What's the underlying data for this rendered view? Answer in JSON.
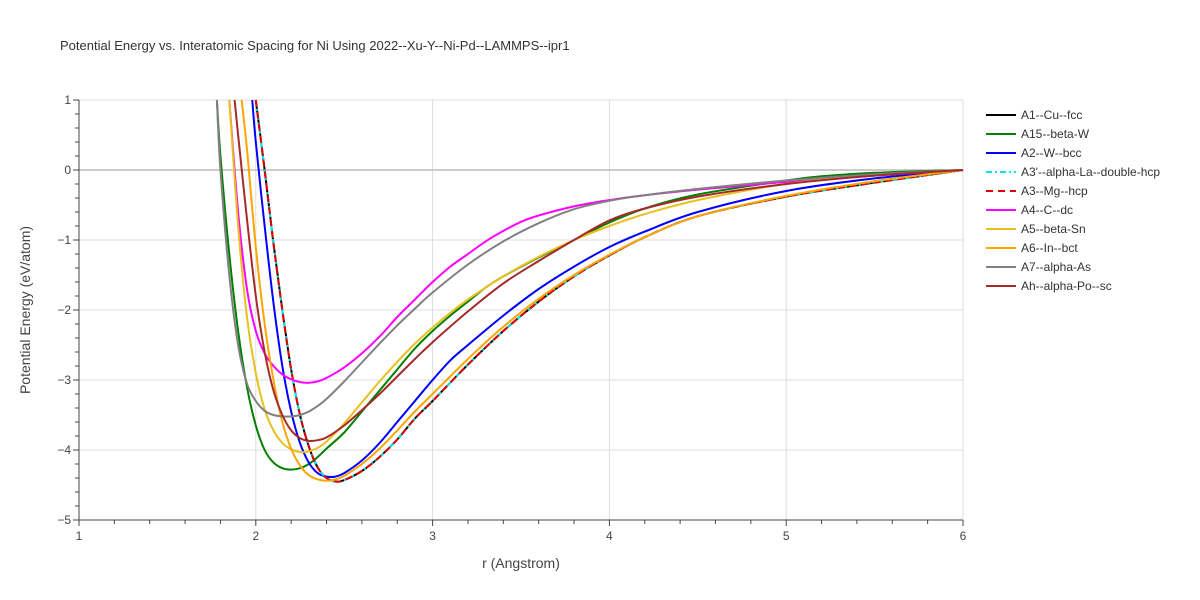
{
  "chart_data": {
    "type": "line",
    "title": "Potential Energy vs. Interatomic Spacing for Ni Using 2022--Xu-Y--Ni-Pd--LAMMPS--ipr1",
    "xlabel": "r (Angstrom)",
    "ylabel": "Potential Energy (eV/atom)",
    "xlim": [
      1,
      6
    ],
    "ylim": [
      -5,
      1
    ],
    "xticks": [
      "1",
      "2",
      "3",
      "4",
      "5",
      "6"
    ],
    "yticks": [
      "1",
      "0",
      "−1",
      "−2",
      "−3",
      "−4",
      "−5"
    ],
    "xtick_values": [
      1,
      2,
      3,
      4,
      5,
      6
    ],
    "ytick_values": [
      1,
      0,
      -1,
      -2,
      -3,
      -4,
      -5
    ],
    "grid": true,
    "legend_position": "right",
    "series": [
      {
        "name": "A1--Cu--fcc",
        "color": "#000000",
        "dash": "solid",
        "legend_dash": "solid",
        "x": [
          2.0,
          2.05,
          2.1,
          2.15,
          2.2,
          2.25,
          2.3,
          2.35,
          2.4,
          2.45,
          2.5,
          2.6,
          2.7,
          2.8,
          2.9,
          3.0,
          3.2,
          3.4,
          3.6,
          3.8,
          4.0,
          4.2,
          4.5,
          5.0,
          5.5,
          6.0
        ],
        "y": [
          1.0,
          0.0,
          -1.05,
          -2.0,
          -2.85,
          -3.5,
          -3.95,
          -4.25,
          -4.4,
          -4.45,
          -4.43,
          -4.3,
          -4.1,
          -3.85,
          -3.55,
          -3.3,
          -2.78,
          -2.3,
          -1.88,
          -1.52,
          -1.22,
          -0.96,
          -0.66,
          -0.38,
          -0.18,
          0.0
        ]
      },
      {
        "name": "A15--beta-W",
        "color": "#008000",
        "dash": "solid",
        "legend_dash": "solid",
        "x": [
          1.78,
          1.8,
          1.85,
          1.9,
          1.95,
          2.0,
          2.05,
          2.1,
          2.15,
          2.2,
          2.25,
          2.3,
          2.35,
          2.4,
          2.5,
          2.6,
          2.7,
          2.8,
          2.9,
          3.0,
          3.1,
          3.2,
          3.3,
          3.4,
          3.6,
          3.8,
          4.0,
          4.2,
          4.5,
          5.0,
          5.2,
          5.5,
          6.0
        ],
        "y": [
          1.0,
          0.2,
          -1.2,
          -2.3,
          -3.1,
          -3.65,
          -4.0,
          -4.18,
          -4.26,
          -4.28,
          -4.26,
          -4.2,
          -4.1,
          -3.98,
          -3.75,
          -3.45,
          -3.15,
          -2.85,
          -2.55,
          -2.3,
          -2.08,
          -1.88,
          -1.68,
          -1.52,
          -1.25,
          -1.0,
          -0.75,
          -0.55,
          -0.35,
          -0.15,
          -0.09,
          -0.04,
          0.0
        ]
      },
      {
        "name": "A2--W--bcc",
        "color": "#0000ff",
        "dash": "solid",
        "legend_dash": "solid",
        "x": [
          1.98,
          2.0,
          2.05,
          2.1,
          2.15,
          2.2,
          2.25,
          2.3,
          2.35,
          2.4,
          2.45,
          2.5,
          2.6,
          2.7,
          2.8,
          2.9,
          3.0,
          3.1,
          3.2,
          3.4,
          3.6,
          3.8,
          4.0,
          4.2,
          4.5,
          5.0,
          5.5,
          6.0
        ],
        "y": [
          1.0,
          0.4,
          -0.8,
          -1.9,
          -2.8,
          -3.45,
          -3.9,
          -4.18,
          -4.33,
          -4.38,
          -4.38,
          -4.33,
          -4.15,
          -3.9,
          -3.6,
          -3.3,
          -3.0,
          -2.72,
          -2.5,
          -2.08,
          -1.7,
          -1.38,
          -1.1,
          -0.88,
          -0.6,
          -0.3,
          -0.12,
          0.0
        ]
      },
      {
        "name": "A3'--alpha-La--double-hcp",
        "color": "#00e5ee",
        "dash": "dashdot",
        "legend_dash": "6,3,2,3",
        "x": [
          2.0,
          2.05,
          2.1,
          2.15,
          2.2,
          2.25,
          2.3,
          2.35,
          2.4,
          2.45,
          2.5,
          2.6,
          2.7,
          2.8,
          2.9,
          3.0,
          3.2,
          3.4,
          3.6,
          3.8,
          4.0,
          4.2,
          4.5,
          5.0,
          5.5,
          6.0
        ],
        "y": [
          1.0,
          0.0,
          -1.05,
          -2.0,
          -2.85,
          -3.5,
          -3.95,
          -4.25,
          -4.4,
          -4.45,
          -4.43,
          -4.3,
          -4.1,
          -3.85,
          -3.55,
          -3.3,
          -2.78,
          -2.3,
          -1.88,
          -1.52,
          -1.22,
          -0.96,
          -0.66,
          -0.38,
          -0.18,
          0.0
        ]
      },
      {
        "name": "A3--Mg--hcp",
        "color": "#dd0000",
        "dash": "dash",
        "legend_dash": "7,5",
        "x": [
          2.0,
          2.05,
          2.1,
          2.15,
          2.2,
          2.25,
          2.3,
          2.35,
          2.4,
          2.45,
          2.5,
          2.6,
          2.7,
          2.8,
          2.9,
          3.0,
          3.2,
          3.4,
          3.6,
          3.8,
          4.0,
          4.2,
          4.5,
          5.0,
          5.5,
          6.0
        ],
        "y": [
          1.0,
          0.0,
          -1.05,
          -2.0,
          -2.85,
          -3.5,
          -3.95,
          -4.25,
          -4.4,
          -4.45,
          -4.43,
          -4.3,
          -4.1,
          -3.85,
          -3.55,
          -3.3,
          -2.78,
          -2.3,
          -1.88,
          -1.52,
          -1.22,
          -0.96,
          -0.66,
          -0.38,
          -0.18,
          0.0
        ]
      },
      {
        "name": "A4--C--dc",
        "color": "#ff00ff",
        "dash": "solid",
        "legend_dash": "solid",
        "x": [
          1.85,
          1.9,
          1.95,
          2.0,
          2.05,
          2.1,
          2.15,
          2.2,
          2.25,
          2.3,
          2.35,
          2.4,
          2.5,
          2.6,
          2.7,
          2.8,
          2.9,
          3.0,
          3.1,
          3.2,
          3.3,
          3.4,
          3.5,
          3.6,
          3.8,
          4.0,
          4.2,
          4.5,
          5.0,
          5.5,
          6.0
        ],
        "y": [
          1.0,
          -0.6,
          -1.7,
          -2.3,
          -2.62,
          -2.8,
          -2.92,
          -2.99,
          -3.03,
          -3.04,
          -3.02,
          -2.97,
          -2.82,
          -2.62,
          -2.38,
          -2.1,
          -1.85,
          -1.6,
          -1.38,
          -1.2,
          -1.02,
          -0.87,
          -0.74,
          -0.65,
          -0.52,
          -0.43,
          -0.36,
          -0.28,
          -0.17,
          -0.08,
          0.0
        ]
      },
      {
        "name": "A5--beta-Sn",
        "color": "#e8c020",
        "dash": "solid",
        "legend_dash": "solid",
        "x": [
          1.85,
          1.9,
          1.95,
          2.0,
          2.05,
          2.1,
          2.15,
          2.2,
          2.25,
          2.3,
          2.35,
          2.4,
          2.5,
          2.6,
          2.7,
          2.8,
          2.9,
          3.0,
          3.1,
          3.2,
          3.4,
          3.6,
          3.8,
          4.0,
          4.2,
          4.5,
          5.0,
          5.5,
          6.0
        ],
        "y": [
          1.0,
          -0.8,
          -2.1,
          -2.9,
          -3.42,
          -3.72,
          -3.9,
          -3.99,
          -4.03,
          -4.02,
          -3.97,
          -3.88,
          -3.62,
          -3.32,
          -3.02,
          -2.74,
          -2.48,
          -2.25,
          -2.04,
          -1.85,
          -1.52,
          -1.24,
          -1.0,
          -0.8,
          -0.63,
          -0.43,
          -0.2,
          -0.07,
          0.0
        ]
      },
      {
        "name": "A6--In--bct",
        "color": "#ffa500",
        "dash": "solid",
        "legend_dash": "solid",
        "x": [
          1.92,
          1.95,
          2.0,
          2.05,
          2.1,
          2.15,
          2.2,
          2.25,
          2.3,
          2.35,
          2.4,
          2.45,
          2.5,
          2.6,
          2.7,
          2.8,
          2.9,
          3.0,
          3.2,
          3.4,
          3.6,
          3.8,
          4.0,
          4.2,
          4.5,
          5.0,
          5.5,
          6.0
        ],
        "y": [
          1.0,
          0.3,
          -1.1,
          -2.2,
          -3.0,
          -3.6,
          -3.98,
          -4.22,
          -4.36,
          -4.42,
          -4.44,
          -4.42,
          -4.37,
          -4.2,
          -3.98,
          -3.72,
          -3.45,
          -3.2,
          -2.7,
          -2.24,
          -1.84,
          -1.5,
          -1.21,
          -0.96,
          -0.66,
          -0.37,
          -0.16,
          0.0
        ]
      },
      {
        "name": "A7--alpha-As",
        "color": "#808080",
        "dash": "solid",
        "legend_dash": "solid",
        "x": [
          1.78,
          1.8,
          1.85,
          1.9,
          1.95,
          2.0,
          2.05,
          2.1,
          2.15,
          2.2,
          2.25,
          2.3,
          2.35,
          2.4,
          2.5,
          2.6,
          2.7,
          2.8,
          2.9,
          3.0,
          3.2,
          3.4,
          3.6,
          3.8,
          4.0,
          4.2,
          4.5,
          5.0,
          5.5,
          6.0
        ],
        "y": [
          1.0,
          0.0,
          -1.5,
          -2.5,
          -3.05,
          -3.3,
          -3.44,
          -3.5,
          -3.52,
          -3.52,
          -3.5,
          -3.45,
          -3.37,
          -3.27,
          -3.02,
          -2.75,
          -2.48,
          -2.22,
          -1.98,
          -1.75,
          -1.35,
          -1.02,
          -0.76,
          -0.56,
          -0.44,
          -0.36,
          -0.27,
          -0.15,
          -0.06,
          0.0
        ]
      },
      {
        "name": "Ah--alpha-Po--sc",
        "color": "#a52a2a",
        "dash": "solid",
        "legend_dash": "solid",
        "x": [
          1.88,
          1.9,
          1.95,
          2.0,
          2.05,
          2.1,
          2.15,
          2.2,
          2.25,
          2.3,
          2.35,
          2.4,
          2.5,
          2.6,
          2.7,
          2.8,
          2.9,
          3.0,
          3.2,
          3.4,
          3.6,
          3.8,
          4.0,
          4.2,
          4.5,
          5.0,
          5.5,
          6.0
        ],
        "y": [
          1.0,
          0.5,
          -0.7,
          -1.8,
          -2.6,
          -3.15,
          -3.5,
          -3.72,
          -3.83,
          -3.87,
          -3.86,
          -3.82,
          -3.65,
          -3.43,
          -3.2,
          -2.95,
          -2.7,
          -2.46,
          -2.02,
          -1.62,
          -1.3,
          -1.0,
          -0.72,
          -0.55,
          -0.38,
          -0.2,
          -0.08,
          0.0
        ]
      }
    ]
  }
}
